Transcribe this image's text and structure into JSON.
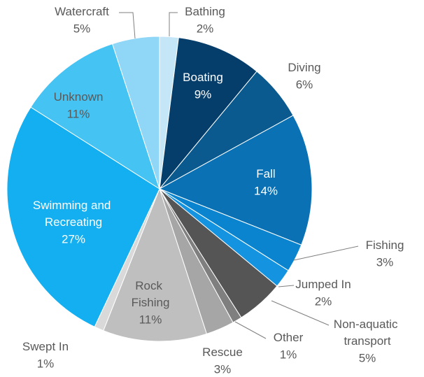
{
  "chart_data": {
    "type": "pie",
    "categories": [
      "Bathing",
      "Boating",
      "Diving",
      "Fall",
      "Fishing",
      "Jumped In",
      "Non-aquatic transport",
      "Other",
      "Rescue",
      "Rock Fishing",
      "Swept In",
      "Swimming and Recreating",
      "Unknown",
      "Watercraft"
    ],
    "values": [
      2,
      9,
      6,
      14,
      3,
      2,
      5,
      1,
      3,
      11,
      1,
      27,
      11,
      5
    ],
    "value_labels": [
      "2%",
      "9%",
      "6%",
      "14%",
      "3%",
      "2%",
      "5%",
      "1%",
      "3%",
      "11%",
      "1%",
      "27%",
      "11%",
      "5%"
    ],
    "colors": [
      "#c5e6f7",
      "#053e6b",
      "#0a5a8f",
      "#0a71b4",
      "#0a84cf",
      "#1494e0",
      "#555555",
      "#7f7f7f",
      "#a6a6a6",
      "#bfbfbf",
      "#d9d9d9",
      "#13aff0",
      "#45c3f3",
      "#8fd6f7"
    ]
  }
}
